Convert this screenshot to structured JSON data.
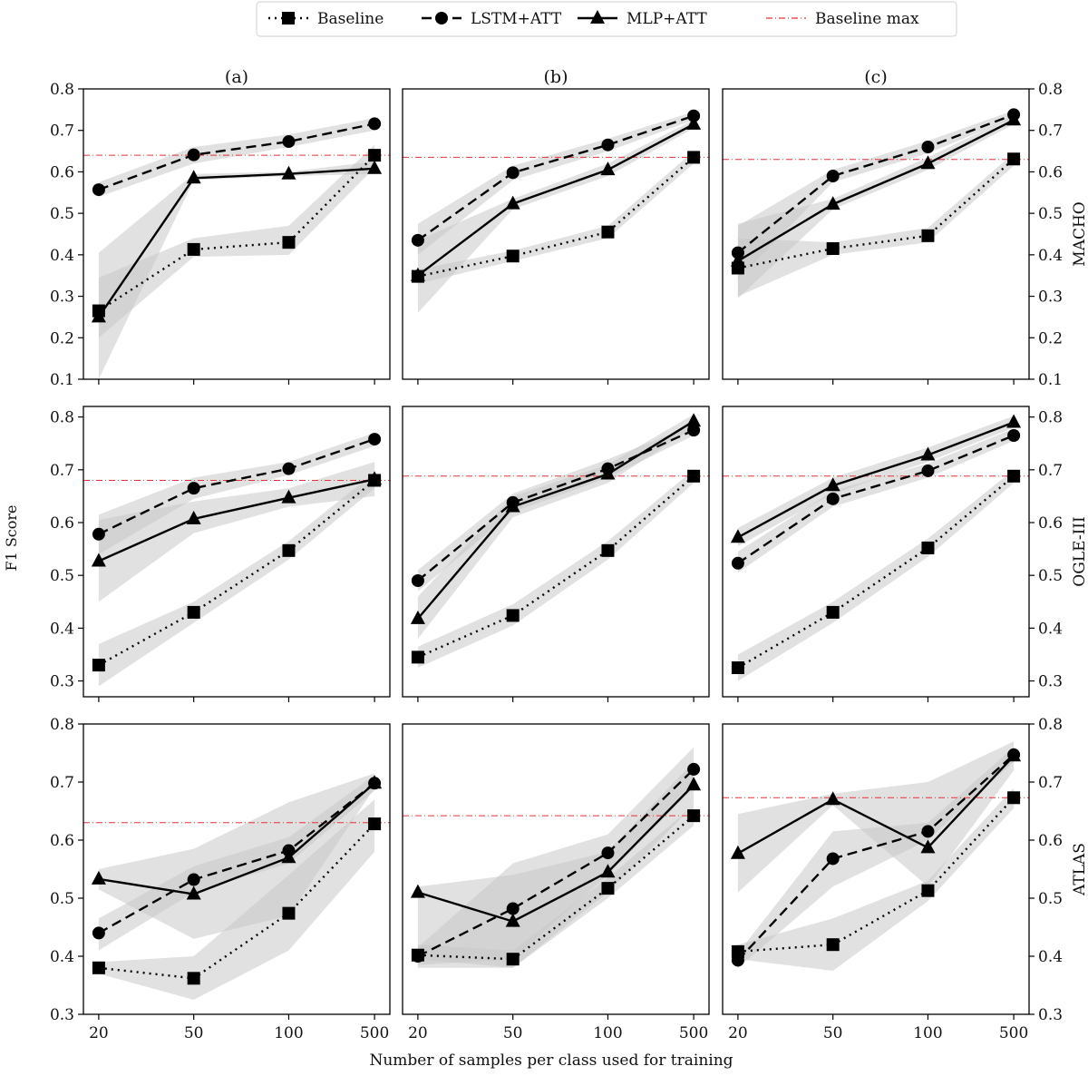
{
  "figure": {
    "col_titles": [
      "(a)",
      "(b)",
      "(c)"
    ],
    "row_labels": [
      "MACHO",
      "OGLE-III",
      "ATLAS"
    ],
    "ylabel": "F1 Score",
    "xlabel": "Number of samples per class used for training"
  },
  "legend": {
    "placement": "top-center",
    "entries": [
      {
        "label": "Baseline",
        "style": "dotted",
        "marker": "square",
        "color": "#000000"
      },
      {
        "label": "LSTM+ATT",
        "style": "dashed",
        "marker": "circle",
        "color": "#000000"
      },
      {
        "label": "MLP+ATT",
        "style": "solid",
        "marker": "triangle",
        "color": "#000000"
      },
      {
        "label": "Baseline max",
        "style": "dashdot",
        "marker": "none",
        "color": "#e8303a"
      }
    ]
  },
  "colors": {
    "baseline_max": "#e8303a",
    "band": "#c8c8c8",
    "line": "#000000"
  },
  "chart_data": [
    {
      "type": "line",
      "row": "MACHO",
      "col": "(a)",
      "categories": [
        "20",
        "50",
        "100",
        "500"
      ],
      "ylim": [
        0.1,
        0.8
      ],
      "yticks": [
        "0.1",
        "0.2",
        "0.3",
        "0.4",
        "0.5",
        "0.6",
        "0.7",
        "0.8"
      ],
      "ytick_side": "left",
      "baseline_max": 0.64,
      "series": [
        {
          "name": "Baseline",
          "values": [
            0.265,
            0.413,
            0.43,
            0.64
          ],
          "lower": [
            0.2,
            0.395,
            0.4,
            0.61
          ],
          "upper": [
            0.345,
            0.44,
            0.47,
            0.665
          ]
        },
        {
          "name": "LSTM+ATT",
          "values": [
            0.557,
            0.641,
            0.673,
            0.716
          ],
          "lower": [
            0.54,
            0.62,
            0.66,
            0.7
          ],
          "upper": [
            0.575,
            0.66,
            0.69,
            0.73
          ]
        },
        {
          "name": "MLP+ATT",
          "values": [
            0.25,
            0.585,
            0.595,
            0.608
          ],
          "lower": [
            0.1,
            0.58,
            0.59,
            0.595
          ],
          "upper": [
            0.405,
            0.595,
            0.6,
            0.625
          ]
        }
      ]
    },
    {
      "type": "line",
      "row": "MACHO",
      "col": "(b)",
      "categories": [
        "20",
        "50",
        "100",
        "500"
      ],
      "ylim": [
        0.1,
        0.8
      ],
      "yticks": [],
      "ytick_side": "none",
      "baseline_max": 0.635,
      "series": [
        {
          "name": "Baseline",
          "values": [
            0.348,
            0.397,
            0.455,
            0.635
          ],
          "lower": [
            0.33,
            0.385,
            0.44,
            0.62
          ],
          "upper": [
            0.365,
            0.41,
            0.47,
            0.65
          ]
        },
        {
          "name": "LSTM+ATT",
          "values": [
            0.435,
            0.598,
            0.665,
            0.735
          ],
          "lower": [
            0.4,
            0.58,
            0.65,
            0.725
          ],
          "upper": [
            0.475,
            0.615,
            0.68,
            0.745
          ]
        },
        {
          "name": "MLP+ATT",
          "values": [
            0.35,
            0.523,
            0.605,
            0.715
          ],
          "lower": [
            0.26,
            0.51,
            0.59,
            0.705
          ],
          "upper": [
            0.435,
            0.535,
            0.62,
            0.725
          ]
        }
      ]
    },
    {
      "type": "line",
      "row": "MACHO",
      "col": "(c)",
      "categories": [
        "20",
        "50",
        "100",
        "500"
      ],
      "ylim": [
        0.1,
        0.8
      ],
      "yticks": [
        "0.1",
        "0.2",
        "0.3",
        "0.4",
        "0.5",
        "0.6",
        "0.7",
        "0.8"
      ],
      "ytick_side": "right",
      "baseline_max": 0.63,
      "series": [
        {
          "name": "Baseline",
          "values": [
            0.368,
            0.415,
            0.446,
            0.631
          ],
          "lower": [
            0.3,
            0.4,
            0.43,
            0.615
          ],
          "upper": [
            0.44,
            0.43,
            0.465,
            0.645
          ]
        },
        {
          "name": "LSTM+ATT",
          "values": [
            0.405,
            0.59,
            0.66,
            0.738
          ],
          "lower": [
            0.34,
            0.575,
            0.645,
            0.73
          ],
          "upper": [
            0.47,
            0.605,
            0.675,
            0.748
          ]
        },
        {
          "name": "MLP+ATT",
          "values": [
            0.385,
            0.522,
            0.62,
            0.725
          ],
          "lower": [
            0.295,
            0.51,
            0.605,
            0.715
          ],
          "upper": [
            0.475,
            0.535,
            0.635,
            0.735
          ]
        }
      ]
    },
    {
      "type": "line",
      "row": "OGLE-III",
      "col": "(a)",
      "categories": [
        "20",
        "50",
        "100",
        "500"
      ],
      "ylim": [
        0.27,
        0.82
      ],
      "yticks": [
        "0.3",
        "0.4",
        "0.5",
        "0.6",
        "0.7",
        "0.8"
      ],
      "ytick_side": "left",
      "baseline_max": 0.68,
      "series": [
        {
          "name": "Baseline",
          "values": [
            0.33,
            0.43,
            0.547,
            0.68
          ],
          "lower": [
            0.29,
            0.41,
            0.53,
            0.665
          ],
          "upper": [
            0.37,
            0.45,
            0.565,
            0.695
          ]
        },
        {
          "name": "LSTM+ATT",
          "values": [
            0.578,
            0.665,
            0.702,
            0.758
          ],
          "lower": [
            0.54,
            0.645,
            0.69,
            0.745
          ],
          "upper": [
            0.615,
            0.685,
            0.715,
            0.77
          ]
        },
        {
          "name": "MLP+ATT",
          "values": [
            0.527,
            0.607,
            0.647,
            0.682
          ],
          "lower": [
            0.45,
            0.58,
            0.63,
            0.65
          ],
          "upper": [
            0.605,
            0.64,
            0.665,
            0.715
          ]
        }
      ]
    },
    {
      "type": "line",
      "row": "OGLE-III",
      "col": "(b)",
      "categories": [
        "20",
        "50",
        "100",
        "500"
      ],
      "ylim": [
        0.27,
        0.82
      ],
      "yticks": [],
      "ytick_side": "none",
      "baseline_max": 0.688,
      "series": [
        {
          "name": "Baseline",
          "values": [
            0.345,
            0.424,
            0.547,
            0.688
          ],
          "lower": [
            0.325,
            0.405,
            0.53,
            0.675
          ],
          "upper": [
            0.365,
            0.445,
            0.565,
            0.7
          ]
        },
        {
          "name": "LSTM+ATT",
          "values": [
            0.49,
            0.638,
            0.702,
            0.775
          ],
          "lower": [
            0.47,
            0.62,
            0.685,
            0.765
          ],
          "upper": [
            0.51,
            0.655,
            0.72,
            0.785
          ]
        },
        {
          "name": "MLP+ATT",
          "values": [
            0.418,
            0.63,
            0.692,
            0.792
          ],
          "lower": [
            0.38,
            0.61,
            0.675,
            0.78
          ],
          "upper": [
            0.46,
            0.65,
            0.71,
            0.805
          ]
        }
      ]
    },
    {
      "type": "line",
      "row": "OGLE-III",
      "col": "(c)",
      "categories": [
        "20",
        "50",
        "100",
        "500"
      ],
      "ylim": [
        0.27,
        0.82
      ],
      "yticks": [
        "0.3",
        "0.4",
        "0.5",
        "0.6",
        "0.7",
        "0.8"
      ],
      "ytick_side": "right",
      "baseline_max": 0.688,
      "series": [
        {
          "name": "Baseline",
          "values": [
            0.325,
            0.43,
            0.552,
            0.688
          ],
          "lower": [
            0.3,
            0.41,
            0.535,
            0.675
          ],
          "upper": [
            0.35,
            0.45,
            0.57,
            0.7
          ]
        },
        {
          "name": "LSTM+ATT",
          "values": [
            0.523,
            0.645,
            0.698,
            0.765
          ],
          "lower": [
            0.505,
            0.63,
            0.685,
            0.755
          ],
          "upper": [
            0.545,
            0.66,
            0.712,
            0.778
          ]
        },
        {
          "name": "MLP+ATT",
          "values": [
            0.572,
            0.67,
            0.728,
            0.79
          ],
          "lower": [
            0.555,
            0.655,
            0.715,
            0.78
          ],
          "upper": [
            0.59,
            0.685,
            0.742,
            0.802
          ]
        }
      ]
    },
    {
      "type": "line",
      "row": "ATLAS",
      "col": "(a)",
      "categories": [
        "20",
        "50",
        "100",
        "500"
      ],
      "ylim": [
        0.3,
        0.8
      ],
      "yticks": [
        "0.3",
        "0.4",
        "0.5",
        "0.6",
        "0.7",
        "0.8"
      ],
      "ytick_side": "left",
      "baseline_max": 0.63,
      "series": [
        {
          "name": "Baseline",
          "values": [
            0.38,
            0.362,
            0.474,
            0.628
          ],
          "lower": [
            0.37,
            0.325,
            0.41,
            0.58
          ],
          "upper": [
            0.39,
            0.4,
            0.54,
            0.67
          ]
        },
        {
          "name": "LSTM+ATT",
          "values": [
            0.44,
            0.532,
            0.582,
            0.698
          ],
          "lower": [
            0.41,
            0.51,
            0.56,
            0.685
          ],
          "upper": [
            0.465,
            0.555,
            0.605,
            0.712
          ]
        },
        {
          "name": "MLP+ATT",
          "values": [
            0.533,
            0.507,
            0.57,
            0.698
          ],
          "lower": [
            0.515,
            0.43,
            0.47,
            0.69
          ],
          "upper": [
            0.55,
            0.585,
            0.665,
            0.715
          ]
        }
      ]
    },
    {
      "type": "line",
      "row": "ATLAS",
      "col": "(b)",
      "categories": [
        "20",
        "50",
        "100",
        "500"
      ],
      "ylim": [
        0.3,
        0.8
      ],
      "yticks": [],
      "ytick_side": "none",
      "baseline_max": 0.642,
      "series": [
        {
          "name": "Baseline",
          "values": [
            0.402,
            0.395,
            0.517,
            0.642
          ],
          "lower": [
            0.38,
            0.38,
            0.5,
            0.625
          ],
          "upper": [
            0.42,
            0.41,
            0.535,
            0.66
          ]
        },
        {
          "name": "LSTM+ATT",
          "values": [
            0.4,
            0.482,
            0.578,
            0.722
          ],
          "lower": [
            0.385,
            0.395,
            0.54,
            0.69
          ],
          "upper": [
            0.415,
            0.56,
            0.61,
            0.76
          ]
        },
        {
          "name": "MLP+ATT",
          "values": [
            0.51,
            0.46,
            0.545,
            0.695
          ],
          "lower": [
            0.395,
            0.38,
            0.51,
            0.66
          ],
          "upper": [
            0.52,
            0.54,
            0.58,
            0.735
          ]
        }
      ]
    },
    {
      "type": "line",
      "row": "ATLAS",
      "col": "(c)",
      "categories": [
        "20",
        "50",
        "100",
        "500"
      ],
      "ylim": [
        0.3,
        0.8
      ],
      "yticks": [
        "0.3",
        "0.4",
        "0.5",
        "0.6",
        "0.7",
        "0.8"
      ],
      "ytick_side": "right",
      "baseline_max": 0.673,
      "series": [
        {
          "name": "Baseline",
          "values": [
            0.408,
            0.42,
            0.513,
            0.673
          ],
          "lower": [
            0.395,
            0.375,
            0.495,
            0.655
          ],
          "upper": [
            0.42,
            0.465,
            0.53,
            0.69
          ]
        },
        {
          "name": "LSTM+ATT",
          "values": [
            0.393,
            0.568,
            0.615,
            0.747
          ],
          "lower": [
            0.38,
            0.52,
            0.6,
            0.735
          ],
          "upper": [
            0.405,
            0.615,
            0.63,
            0.76
          ]
        },
        {
          "name": "MLP+ATT",
          "values": [
            0.577,
            0.67,
            0.587,
            0.745
          ],
          "lower": [
            0.51,
            0.66,
            0.52,
            0.72
          ],
          "upper": [
            0.645,
            0.68,
            0.7,
            0.77
          ]
        }
      ]
    }
  ]
}
